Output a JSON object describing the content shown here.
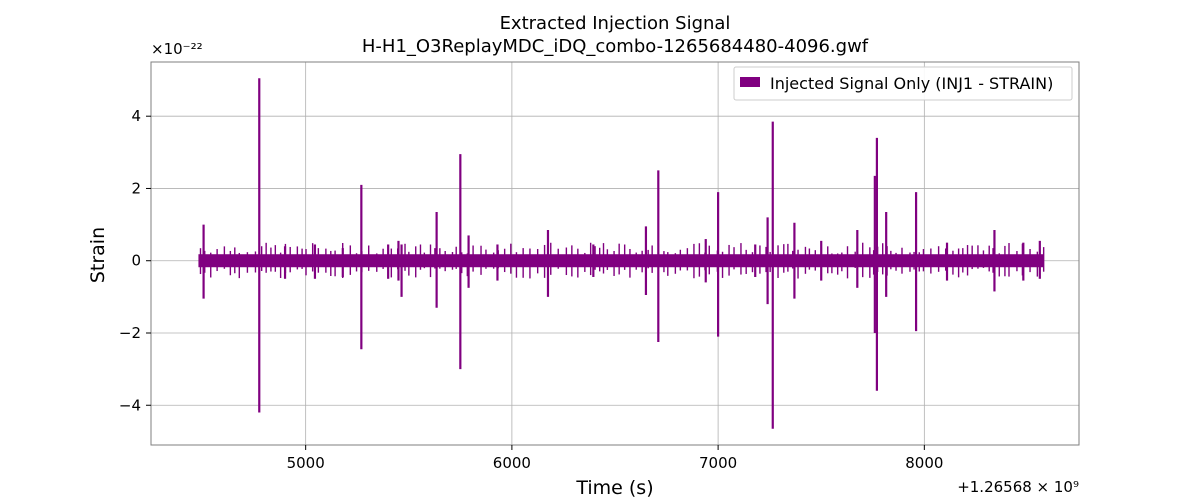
{
  "chart_data": {
    "type": "line",
    "title": "Extracted Injection Signal",
    "subtitle": "H-H1_O3ReplayMDC_iDQ_combo-1265684480-4096.gwf",
    "xlabel": "Time (s)",
    "ylabel": "Strain",
    "y_scale_label": "×10⁻²²",
    "x_offset_label": "+1.26568 × 10⁹",
    "x_offset": 1265680000,
    "xlim": [
      4250,
      8750
    ],
    "ylim": [
      -5.1,
      5.5
    ],
    "y_unit_exponent": -22,
    "xticks": [
      5000,
      6000,
      7000,
      8000
    ],
    "xtick_labels": [
      "5000",
      "6000",
      "7000",
      "8000"
    ],
    "yticks": [
      -4,
      -2,
      0,
      2,
      4
    ],
    "ytick_labels": [
      "−4",
      "−2",
      "0",
      "2",
      "4"
    ],
    "grid": true,
    "legend_position": "top-right",
    "series": [
      {
        "name": "Injected Signal Only (INJ1 - STRAIN)",
        "color": "#800080",
        "x_range": [
          4480,
          8580
        ],
        "baseline_band": [
          -0.18,
          0.18
        ],
        "spikes": [
          {
            "x": 4505,
            "max": 1.0,
            "min": -1.05
          },
          {
            "x": 4775,
            "max": 5.05,
            "min": -4.2
          },
          {
            "x": 4900,
            "max": 0.4,
            "min": -0.5
          },
          {
            "x": 5045,
            "max": 0.45,
            "min": -0.5
          },
          {
            "x": 5180,
            "max": 0.35,
            "min": -0.45
          },
          {
            "x": 5270,
            "max": 2.1,
            "min": -2.45
          },
          {
            "x": 5400,
            "max": 0.45,
            "min": -0.5
          },
          {
            "x": 5450,
            "max": 0.55,
            "min": -0.55
          },
          {
            "x": 5465,
            "max": 0.45,
            "min": -1.0
          },
          {
            "x": 5635,
            "max": 1.35,
            "min": -1.3
          },
          {
            "x": 5750,
            "max": 2.95,
            "min": -3.0
          },
          {
            "x": 5790,
            "max": 0.7,
            "min": -0.75
          },
          {
            "x": 5930,
            "max": 0.45,
            "min": -0.55
          },
          {
            "x": 6175,
            "max": 0.85,
            "min": -1.0
          },
          {
            "x": 6395,
            "max": 0.45,
            "min": -0.45
          },
          {
            "x": 6650,
            "max": 0.95,
            "min": -0.95
          },
          {
            "x": 6710,
            "max": 2.5,
            "min": -2.25
          },
          {
            "x": 6940,
            "max": 0.6,
            "min": -0.6
          },
          {
            "x": 7000,
            "max": 1.9,
            "min": -2.1
          },
          {
            "x": 7180,
            "max": 0.45,
            "min": -0.45
          },
          {
            "x": 7240,
            "max": 1.2,
            "min": -1.2
          },
          {
            "x": 7265,
            "max": 3.85,
            "min": -4.65
          },
          {
            "x": 7370,
            "max": 1.05,
            "min": -1.05
          },
          {
            "x": 7500,
            "max": 0.55,
            "min": -0.55
          },
          {
            "x": 7675,
            "max": 0.85,
            "min": -0.75
          },
          {
            "x": 7760,
            "max": 2.35,
            "min": -2.0
          },
          {
            "x": 7770,
            "max": 3.4,
            "min": -3.6
          },
          {
            "x": 7815,
            "max": 1.35,
            "min": -1.0
          },
          {
            "x": 7960,
            "max": 1.9,
            "min": -1.95
          },
          {
            "x": 8110,
            "max": 0.5,
            "min": -0.55
          },
          {
            "x": 8340,
            "max": 0.85,
            "min": -0.85
          },
          {
            "x": 8480,
            "max": 0.5,
            "min": -0.55
          },
          {
            "x": 8560,
            "max": 0.55,
            "min": -0.5
          }
        ]
      }
    ]
  }
}
